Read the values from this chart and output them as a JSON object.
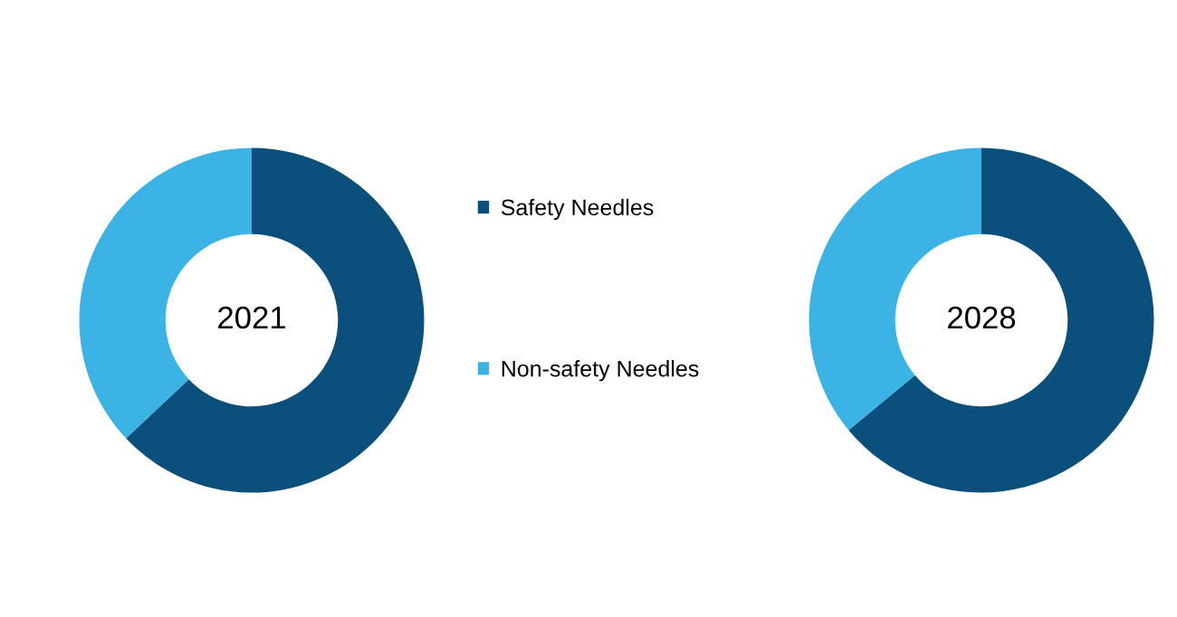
{
  "chart_data": [
    {
      "type": "donut",
      "title": "2021",
      "categories": [
        "Safety Needles",
        "Non-safety Needles"
      ],
      "values": [
        63,
        37
      ],
      "colors": [
        "#0b4f7c",
        "#3bb4e5"
      ],
      "legend": "right"
    },
    {
      "type": "donut",
      "title": "2028",
      "categories": [
        null,
        null
      ],
      "values": [
        64,
        36
      ],
      "colors": [
        "#0b4f7c",
        "#3bb4e5"
      ]
    }
  ]
}
